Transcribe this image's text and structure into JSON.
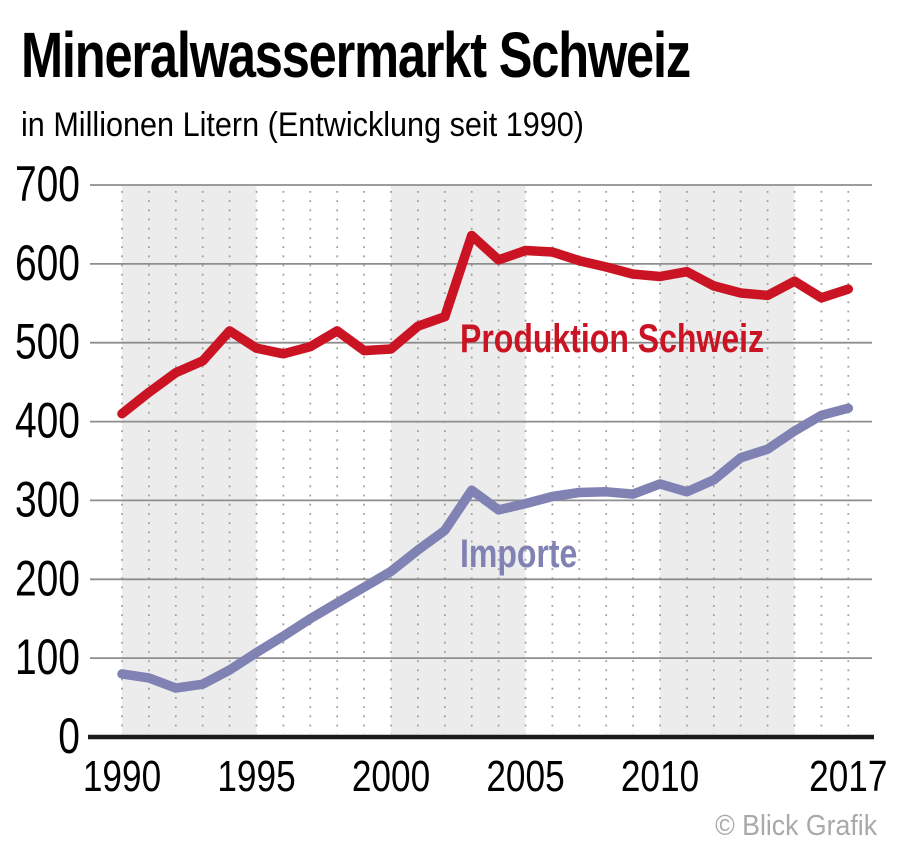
{
  "header": {
    "title": "Mineralwassermarkt Schweiz",
    "subtitle": "in Millionen Litern (Entwicklung seit 1990)"
  },
  "footer": {
    "credit": "© Blick Grafik"
  },
  "colors": {
    "production_red": "#cb1423",
    "imports_purple": "#8182b4",
    "band_gray": "#ececec",
    "grid_gray": "#8e8e8e",
    "dot_gray": "#9c9c9c",
    "baseline_black": "#1a1a1a",
    "credit_gray": "#a9a9a9",
    "text_black": "#000000"
  },
  "chart_data": {
    "type": "line",
    "title": "Mineralwassermarkt Schweiz",
    "subtitle": "in Millionen Litern (Entwicklung seit 1990)",
    "unit": "Millionen Liter",
    "x": [
      1990,
      1991,
      1992,
      1993,
      1994,
      1995,
      1996,
      1997,
      1998,
      1999,
      2000,
      2001,
      2002,
      2003,
      2004,
      2005,
      2006,
      2007,
      2008,
      2009,
      2010,
      2011,
      2012,
      2013,
      2014,
      2015,
      2016,
      2017
    ],
    "series": [
      {
        "name": "Produktion Schweiz",
        "color": "#cb1423",
        "values": [
          410,
          437,
          462,
          477,
          515,
          493,
          486,
          495,
          515,
          490,
          492,
          521,
          533,
          636,
          605,
          617,
          615,
          604,
          596,
          587,
          584,
          590,
          572,
          563,
          560,
          578,
          557,
          568
        ]
      },
      {
        "name": "Importe",
        "color": "#8182b4",
        "values": [
          80,
          75,
          62,
          67,
          85,
          107,
          128,
          150,
          170,
          190,
          210,
          237,
          262,
          313,
          288,
          296,
          305,
          310,
          311,
          308,
          321,
          311,
          326,
          354,
          365,
          388,
          408,
          417
        ]
      }
    ],
    "xticks": [
      "1990",
      "1995",
      "2000",
      "2005",
      "2010",
      "2017"
    ],
    "yticks": [
      0,
      100,
      200,
      300,
      400,
      500,
      600,
      700
    ],
    "ylim": [
      0,
      700
    ],
    "xlim": [
      1990,
      2017
    ],
    "legend_position": "inline-labels-on-chart",
    "grid": {
      "horizontal": true,
      "vertical": "dotted-per-year",
      "band_year_ranges": [
        [
          1990,
          1995
        ],
        [
          2000,
          2005
        ],
        [
          2010,
          2015
        ]
      ],
      "band_color": "#ececec",
      "grid_color": "#8e8e8e",
      "dot_color": "#9c9c9c",
      "baseline_color": "#1a1a1a"
    }
  }
}
